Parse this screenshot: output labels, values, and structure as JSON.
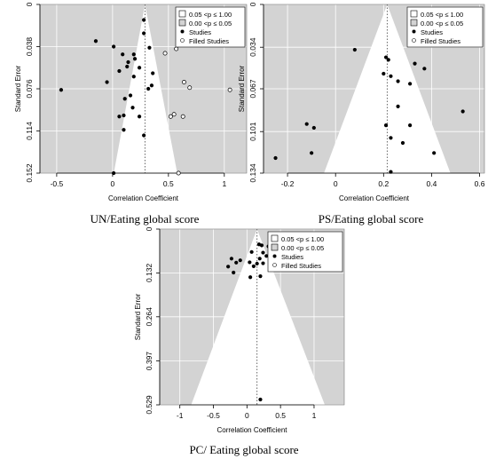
{
  "figures": [
    {
      "caption": "UN/Eating global score"
    },
    {
      "caption": "PS/Eating global score"
    },
    {
      "caption": "PC/ Eating global score"
    }
  ],
  "legend": {
    "items": [
      "0.05 <p ≤ 1.00",
      "0.00 <p ≤ 0.05",
      "Studies",
      "Filled Studies"
    ]
  },
  "colors": {
    "contour_significant": "#d3d3d3",
    "funnel_inner": "#ffffff",
    "study_point": "#000000",
    "filled_point": "#ffffff"
  },
  "chart_data": [
    {
      "type": "scatter",
      "subtype": "contour-enhanced funnel plot",
      "xlabel": "Correlation Coefficient",
      "ylabel": "Standard Error",
      "xlim": [
        -0.65,
        1.2
      ],
      "ylim": [
        0,
        0.152
      ],
      "y_inverted": true,
      "x_ticks": [
        -0.5,
        0,
        0.5,
        1
      ],
      "x_tick_labels": [
        "-0.5",
        "0",
        "0.5",
        "1"
      ],
      "y_ticks": [
        0,
        0.038,
        0.076,
        0.114,
        0.152
      ],
      "y_tick_labels": [
        "0",
        "0.038",
        "0.076",
        "0.114",
        "0.152"
      ],
      "grid": true,
      "legend_position": "top-right",
      "summary_estimate": 0.29,
      "funnel_base_x": [
        0.0,
        0.59
      ],
      "funnel_total_height": 0.158,
      "studies": [
        {
          "x": 0.28,
          "y": 0.014
        },
        {
          "x": 0.28,
          "y": 0.026
        },
        {
          "x": -0.15,
          "y": 0.033
        },
        {
          "x": 0.01,
          "y": 0.038
        },
        {
          "x": 0.33,
          "y": 0.039
        },
        {
          "x": 0.09,
          "y": 0.045
        },
        {
          "x": 0.19,
          "y": 0.045
        },
        {
          "x": 0.2,
          "y": 0.049
        },
        {
          "x": 0.14,
          "y": 0.052
        },
        {
          "x": 0.13,
          "y": 0.056
        },
        {
          "x": 0.24,
          "y": 0.057
        },
        {
          "x": 0.06,
          "y": 0.06
        },
        {
          "x": 0.36,
          "y": 0.062
        },
        {
          "x": 0.19,
          "y": 0.065
        },
        {
          "x": -0.05,
          "y": 0.07
        },
        {
          "x": 0.35,
          "y": 0.073
        },
        {
          "x": 0.32,
          "y": 0.076
        },
        {
          "x": -0.46,
          "y": 0.077
        },
        {
          "x": 0.16,
          "y": 0.082
        },
        {
          "x": 0.11,
          "y": 0.085
        },
        {
          "x": 0.18,
          "y": 0.093
        },
        {
          "x": 0.1,
          "y": 0.1
        },
        {
          "x": 0.06,
          "y": 0.101
        },
        {
          "x": 0.24,
          "y": 0.101
        },
        {
          "x": 0.1,
          "y": 0.113
        },
        {
          "x": 0.28,
          "y": 0.118
        },
        {
          "x": 0.01,
          "y": 0.152
        }
      ],
      "filled_studies": [
        {
          "x": 0.47,
          "y": 0.044
        },
        {
          "x": 0.57,
          "y": 0.04
        },
        {
          "x": 0.64,
          "y": 0.07
        },
        {
          "x": 0.69,
          "y": 0.075
        },
        {
          "x": 1.05,
          "y": 0.077
        },
        {
          "x": 0.55,
          "y": 0.099
        },
        {
          "x": 0.52,
          "y": 0.101
        },
        {
          "x": 0.63,
          "y": 0.101
        },
        {
          "x": 0.59,
          "y": 0.152
        }
      ]
    },
    {
      "type": "scatter",
      "subtype": "contour-enhanced funnel plot",
      "xlabel": "Correlation Coefficient",
      "ylabel": "Standard Error",
      "xlim": [
        -0.3,
        0.62
      ],
      "ylim": [
        0,
        0.134
      ],
      "y_inverted": true,
      "x_ticks": [
        -0.2,
        0,
        0.2,
        0.4,
        0.6
      ],
      "x_tick_labels": [
        "-0.2",
        "0",
        "0.2",
        "0.4",
        "0.6"
      ],
      "y_ticks": [
        0,
        0.034,
        0.067,
        0.101,
        0.134
      ],
      "y_tick_labels": [
        "0",
        "0.034",
        "0.067",
        "0.101",
        "0.134"
      ],
      "grid": true,
      "legend_position": "top-right",
      "summary_estimate": 0.215,
      "funnel_base_x": [
        -0.06,
        0.49
      ],
      "funnel_total_height": 0.14,
      "studies": [
        {
          "x": 0.08,
          "y": 0.036
        },
        {
          "x": 0.21,
          "y": 0.042
        },
        {
          "x": 0.22,
          "y": 0.044
        },
        {
          "x": 0.33,
          "y": 0.047
        },
        {
          "x": 0.37,
          "y": 0.051
        },
        {
          "x": 0.2,
          "y": 0.055
        },
        {
          "x": 0.23,
          "y": 0.057
        },
        {
          "x": 0.26,
          "y": 0.061
        },
        {
          "x": 0.31,
          "y": 0.063
        },
        {
          "x": 0.26,
          "y": 0.081
        },
        {
          "x": 0.53,
          "y": 0.085
        },
        {
          "x": -0.12,
          "y": 0.095
        },
        {
          "x": -0.09,
          "y": 0.098
        },
        {
          "x": 0.21,
          "y": 0.096
        },
        {
          "x": 0.31,
          "y": 0.096
        },
        {
          "x": 0.23,
          "y": 0.106
        },
        {
          "x": 0.28,
          "y": 0.11
        },
        {
          "x": 0.41,
          "y": 0.118
        },
        {
          "x": -0.1,
          "y": 0.118
        },
        {
          "x": -0.25,
          "y": 0.122
        },
        {
          "x": 0.23,
          "y": 0.133
        }
      ],
      "filled_studies": []
    },
    {
      "type": "scatter",
      "subtype": "contour-enhanced funnel plot",
      "xlabel": "Correlation Coefficient",
      "ylabel": "Standard Error",
      "xlim": [
        -1.3,
        1.45
      ],
      "ylim": [
        0,
        0.529
      ],
      "y_inverted": true,
      "x_ticks": [
        -1,
        -0.5,
        0,
        0.5,
        1
      ],
      "x_tick_labels": [
        "-1",
        "-0.5",
        "0",
        "0.5",
        "1"
      ],
      "y_ticks": [
        0,
        0.132,
        0.264,
        0.397,
        0.529
      ],
      "y_tick_labels": [
        "0",
        "0.132",
        "0.264",
        "0.397",
        "0.529"
      ],
      "grid": true,
      "legend_position": "top-right",
      "summary_estimate": 0.15,
      "funnel_base_x": [
        -0.87,
        1.2
      ],
      "funnel_total_height": 0.55,
      "studies": [
        {
          "x": 0.18,
          "y": 0.046
        },
        {
          "x": 0.22,
          "y": 0.049
        },
        {
          "x": 0.32,
          "y": 0.052
        },
        {
          "x": 0.44,
          "y": 0.056
        },
        {
          "x": 0.4,
          "y": 0.064
        },
        {
          "x": 0.07,
          "y": 0.069
        },
        {
          "x": 0.24,
          "y": 0.071
        },
        {
          "x": 0.29,
          "y": 0.081
        },
        {
          "x": -0.23,
          "y": 0.089
        },
        {
          "x": 0.19,
          "y": 0.089
        },
        {
          "x": -0.1,
          "y": 0.094
        },
        {
          "x": -0.16,
          "y": 0.101
        },
        {
          "x": 0.04,
          "y": 0.1
        },
        {
          "x": 0.15,
          "y": 0.104
        },
        {
          "x": 0.24,
          "y": 0.103
        },
        {
          "x": -0.28,
          "y": 0.113
        },
        {
          "x": 0.1,
          "y": 0.112
        },
        {
          "x": -0.2,
          "y": 0.131
        },
        {
          "x": 0.05,
          "y": 0.145
        },
        {
          "x": 0.2,
          "y": 0.142
        },
        {
          "x": 0.2,
          "y": 0.513
        }
      ],
      "filled_studies": []
    }
  ]
}
